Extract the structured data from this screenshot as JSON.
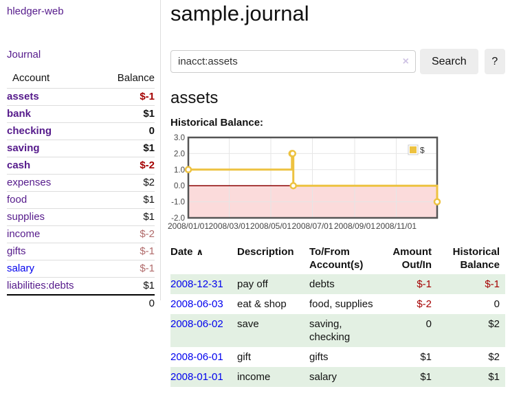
{
  "app": {
    "brand": "hledger-web",
    "nav_journal": "Journal"
  },
  "colors": {
    "link_purple": "#551a8b",
    "link_blue": "#0000ee",
    "neg_strong": "#a40000",
    "neg_muted": "#b06a6a",
    "row_green": "#e3f0e3",
    "border_gray": "#dddddd",
    "chart_series": "#edc240",
    "chart_negative_bg": "#fbdbdb",
    "chart_zero_line": "#8b0000",
    "chart_border": "#545454"
  },
  "sidebar": {
    "header": {
      "account": "Account",
      "balance": "Balance"
    },
    "accounts": [
      {
        "name": "assets",
        "balance": "$-1",
        "level": 1,
        "bold": true,
        "neg": "strong"
      },
      {
        "name": "bank",
        "balance": "$1",
        "level": 2,
        "bold": true,
        "neg": "none"
      },
      {
        "name": "checking",
        "balance": "0",
        "level": 3,
        "bold": true,
        "neg": "none"
      },
      {
        "name": "saving",
        "balance": "$1",
        "level": 3,
        "bold": true,
        "neg": "none"
      },
      {
        "name": "cash",
        "balance": "$-2",
        "level": 2,
        "bold": true,
        "neg": "strong"
      },
      {
        "name": "expenses",
        "balance": "$2",
        "level": 1,
        "bold": false,
        "neg": "none"
      },
      {
        "name": "food",
        "balance": "$1",
        "level": 2,
        "bold": false,
        "neg": "none"
      },
      {
        "name": "supplies",
        "balance": "$1",
        "level": 2,
        "bold": false,
        "neg": "none"
      },
      {
        "name": "income",
        "balance": "$-2",
        "level": 1,
        "bold": false,
        "neg": "muted"
      },
      {
        "name": "gifts",
        "balance": "$-1",
        "level": 2,
        "bold": false,
        "neg": "muted"
      },
      {
        "name": "salary",
        "balance": "$-1",
        "level": 2,
        "bold": false,
        "neg": "muted",
        "unvisited": true
      },
      {
        "name": "liabilities:debts",
        "balance": "$1",
        "level": 1,
        "bold": false,
        "neg": "none"
      }
    ],
    "total": "0"
  },
  "header": {
    "title": "sample.journal"
  },
  "search": {
    "value": "inacct:assets",
    "clear_label": "×",
    "button_label": "Search",
    "help_label": "?"
  },
  "account_page": {
    "heading": "assets",
    "chart_label": "Historical Balance:"
  },
  "chart_data": {
    "type": "line",
    "title": "Historical Balance",
    "step": true,
    "series": [
      {
        "name": "$",
        "color": "#edc240",
        "points": [
          [
            "2008-01-01",
            1
          ],
          [
            "2008-06-01",
            2
          ],
          [
            "2008-06-02",
            2
          ],
          [
            "2008-06-03",
            0
          ],
          [
            "2008-12-31",
            -1
          ]
        ]
      }
    ],
    "x_range": [
      "2008-01-01",
      "2008-12-31"
    ],
    "ylim": [
      -2,
      3
    ],
    "y_ticks": [
      3.0,
      2.0,
      1.0,
      0.0,
      -1.0,
      -2.0
    ],
    "x_ticks": [
      "2008/01/01",
      "2008/03/01",
      "2008/05/01",
      "2008/07/01",
      "2008/09/01",
      "2008/11/01"
    ],
    "grid": true,
    "legend_position": "top-right",
    "negative_region_color": "#fbdbdb",
    "zero_line_color": "#8b0000"
  },
  "register": {
    "columns": [
      {
        "label": "Date",
        "sortable_asc": true,
        "align": "left"
      },
      {
        "label": "Description",
        "align": "left"
      },
      {
        "label": "To/From Account(s)",
        "align": "left"
      },
      {
        "label": "Amount Out/In",
        "align": "right"
      },
      {
        "label": "Historical Balance",
        "align": "right"
      }
    ],
    "sort_asc_icon": "∧",
    "rows": [
      {
        "date": "2008-12-31",
        "description": "pay off",
        "accounts": "debts",
        "amount": "$-1",
        "amount_neg": true,
        "balance": "$-1",
        "balance_neg": true
      },
      {
        "date": "2008-06-03",
        "description": "eat & shop",
        "accounts": "food, supplies",
        "amount": "$-2",
        "amount_neg": true,
        "balance": "0",
        "balance_neg": false
      },
      {
        "date": "2008-06-02",
        "description": "save",
        "accounts": "saving, checking",
        "amount": "0",
        "amount_neg": false,
        "balance": "$2",
        "balance_neg": false
      },
      {
        "date": "2008-06-01",
        "description": "gift",
        "accounts": "gifts",
        "amount": "$1",
        "amount_neg": false,
        "balance": "$2",
        "balance_neg": false
      },
      {
        "date": "2008-01-01",
        "description": "income",
        "accounts": "salary",
        "amount": "$1",
        "amount_neg": false,
        "balance": "$1",
        "balance_neg": false
      }
    ]
  }
}
